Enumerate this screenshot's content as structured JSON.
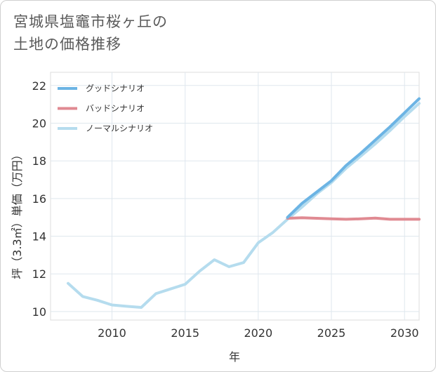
{
  "title": {
    "line1": "宮城県塩竈市桜ヶ丘の",
    "line2": "土地の価格推移"
  },
  "chart_data": {
    "type": "line",
    "title": "宮城県塩竈市桜ヶ丘の土地の価格推移",
    "xlabel": "年",
    "ylabel": "坪（3.3㎡）単価（万円）",
    "xlim": [
      2005.8,
      2031
    ],
    "ylim": [
      9.55,
      22.7
    ],
    "xticks": [
      2010,
      2015,
      2020,
      2025,
      2030
    ],
    "yticks": [
      10,
      12,
      14,
      16,
      18,
      20,
      22
    ],
    "grid": true,
    "legend_position": "top-left",
    "series": [
      {
        "name": "グッドシナリオ",
        "color": "#6cb4e4",
        "x": [
          2022,
          2023,
          2024,
          2025,
          2026,
          2027,
          2028,
          2029,
          2030,
          2031
        ],
        "y": [
          15.0,
          15.75,
          16.35,
          16.95,
          17.75,
          18.4,
          19.1,
          19.8,
          20.55,
          21.3
        ]
      },
      {
        "name": "バッドシナリオ",
        "color": "#e08a92",
        "x": [
          2022,
          2023,
          2024,
          2025,
          2026,
          2027,
          2028,
          2029,
          2030,
          2031
        ],
        "y": [
          14.95,
          14.98,
          14.95,
          14.92,
          14.9,
          14.92,
          14.96,
          14.9,
          14.9,
          14.9
        ]
      },
      {
        "name": "ノーマルシナリオ",
        "color": "#b5dcee",
        "x": [
          2007,
          2008,
          2009,
          2010,
          2011,
          2012,
          2013,
          2014,
          2015,
          2016,
          2017,
          2018,
          2019,
          2020,
          2021,
          2022,
          2023,
          2024,
          2025,
          2026,
          2027,
          2028,
          2029,
          2030,
          2031
        ],
        "y": [
          11.5,
          10.8,
          10.6,
          10.35,
          10.28,
          10.22,
          10.95,
          11.2,
          11.45,
          12.15,
          12.75,
          12.38,
          12.6,
          13.65,
          14.2,
          14.9,
          15.55,
          16.25,
          16.85,
          17.6,
          18.25,
          18.9,
          19.6,
          20.35,
          21.05
        ]
      }
    ]
  }
}
